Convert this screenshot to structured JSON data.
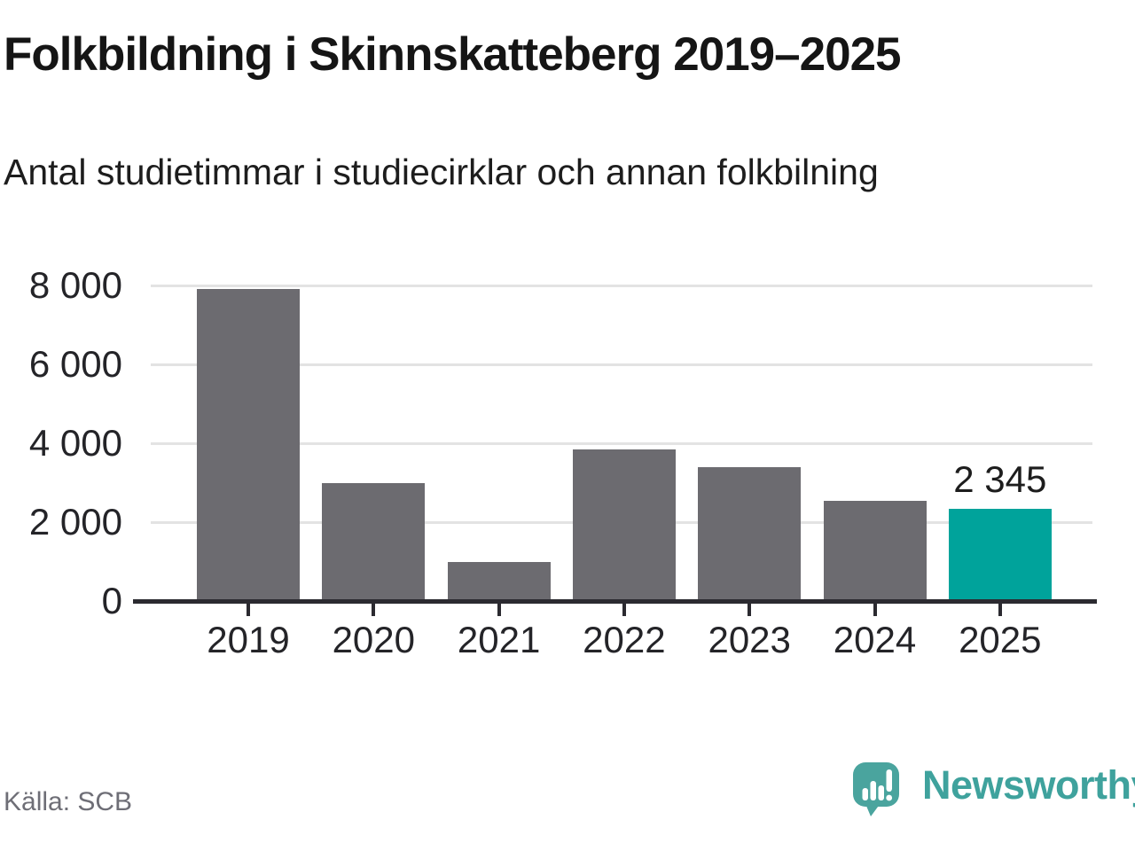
{
  "header": {
    "title": "Folkbildning i Skinnskatteberg 2019–2025",
    "subtitle": "Antal studietimmar i studiecirklar och annan folkbilning"
  },
  "chart_data": {
    "type": "bar",
    "title": "Folkbildning i Skinnskatteberg 2019–2025",
    "subtitle": "Antal studietimmar i studiecirklar och annan folkbilning",
    "categories": [
      "2019",
      "2020",
      "2021",
      "2022",
      "2023",
      "2024",
      "2025"
    ],
    "values": [
      7900,
      2980,
      1000,
      3840,
      3400,
      2550,
      2345
    ],
    "highlight_index": 6,
    "highlight_value_label": "2 345",
    "xlabel": "",
    "ylabel": "",
    "ylim": [
      0,
      8000
    ],
    "y_ticks": [
      0,
      2000,
      4000,
      6000,
      8000
    ],
    "y_tick_labels": [
      "0",
      "2 000",
      "4 000",
      "6 000",
      "8 000"
    ],
    "grid": "horizontal",
    "legend": "none",
    "bar_color": "#6c6b70",
    "highlight_color": "#00a39b",
    "gridline_color": "#e3e3e3",
    "axis_color": "#2b2a30"
  },
  "footer": {
    "source": "Källa: SCB",
    "brand": "Newsworthy",
    "brand_color": "#3fa29d",
    "logo_color": "#4aa49e"
  }
}
